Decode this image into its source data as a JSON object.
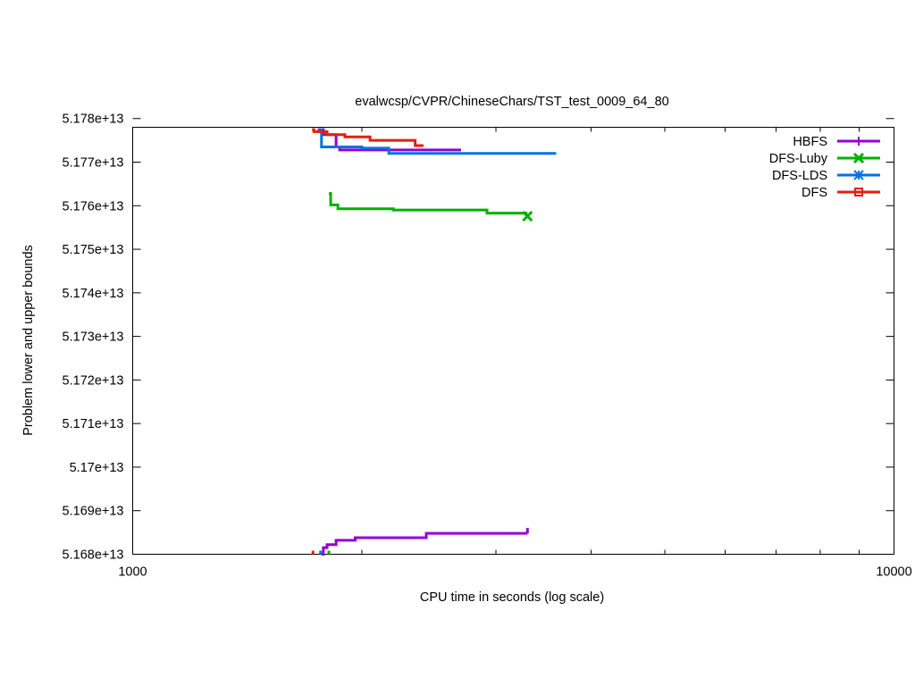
{
  "chart_data": {
    "type": "line",
    "title": "evalwcsp/CVPR/ChineseChars/TST_test_0009_64_80",
    "xlabel": "CPU time in seconds (log scale)",
    "ylabel": "Problem lower and upper bounds",
    "xscale": "log",
    "xlim": [
      1000,
      10000
    ],
    "ylim": [
      51680000000000,
      51778000000000
    ],
    "x_ticks": [
      {
        "value": 1000,
        "label": "1000"
      },
      {
        "value": 10000,
        "label": "10000"
      }
    ],
    "y_ticks": [
      {
        "value": 51680000000000,
        "label": "5.168e+13"
      },
      {
        "value": 51690000000000,
        "label": "5.169e+13"
      },
      {
        "value": 51700000000000,
        "label": "5.17e+13"
      },
      {
        "value": 51710000000000,
        "label": "5.171e+13"
      },
      {
        "value": 51720000000000,
        "label": "5.172e+13"
      },
      {
        "value": 51730000000000,
        "label": "5.173e+13"
      },
      {
        "value": 51740000000000,
        "label": "5.174e+13"
      },
      {
        "value": 51750000000000,
        "label": "5.175e+13"
      },
      {
        "value": 51760000000000,
        "label": "5.176e+13"
      },
      {
        "value": 51770000000000,
        "label": "5.177e+13"
      },
      {
        "value": 51780000000000,
        "label": "5.178e+13"
      }
    ],
    "legend_position": "top-right",
    "series": [
      {
        "name": "HBFS",
        "color": "#9400d3",
        "marker": "plus",
        "upper": [
          [
            1750,
            51777500000000
          ],
          [
            1780,
            51776300000000
          ],
          [
            1850,
            51773500000000
          ],
          [
            1870,
            51772800000000
          ],
          [
            2700,
            51772800000000
          ]
        ],
        "lower": [
          [
            1770,
            51680000000000
          ],
          [
            1780,
            51681500000000
          ],
          [
            1800,
            51682200000000
          ],
          [
            1850,
            51683200000000
          ],
          [
            1960,
            51683800000000
          ],
          [
            2430,
            51684800000000
          ],
          [
            3300,
            51684800000000
          ]
        ]
      },
      {
        "name": "DFS-Luby",
        "color": "#00b000",
        "marker": "x",
        "upper": [
          [
            1810,
            51762800000000
          ],
          [
            1820,
            51760200000000
          ],
          [
            1860,
            51759300000000
          ],
          [
            2200,
            51759000000000
          ],
          [
            2920,
            51758300000000
          ],
          [
            3300,
            51758300000000
          ]
        ],
        "lower": [
          [
            1810,
            51680000000000
          ]
        ],
        "end_marker": [
          3300,
          51757600000000
        ]
      },
      {
        "name": "DFS-LDS",
        "color": "#0072e5",
        "marker": "star",
        "upper": [
          [
            1755,
            51777500000000
          ],
          [
            1770,
            51773500000000
          ],
          [
            1880,
            51773500000000
          ],
          [
            2000,
            51773200000000
          ],
          [
            2170,
            51772000000000
          ],
          [
            3600,
            51772000000000
          ]
        ],
        "lower": [
          [
            1765,
            51680000000000
          ]
        ]
      },
      {
        "name": "DFS",
        "color": "#e51e10",
        "marker": "square",
        "upper": [
          [
            1720,
            51777500000000
          ],
          [
            1730,
            51777000000000
          ],
          [
            1800,
            51776300000000
          ],
          [
            1900,
            51775800000000
          ],
          [
            2050,
            51775000000000
          ],
          [
            2350,
            51773800000000
          ],
          [
            2400,
            51773500000000
          ]
        ],
        "lower": [
          [
            1725,
            51680000000000
          ]
        ]
      }
    ]
  }
}
